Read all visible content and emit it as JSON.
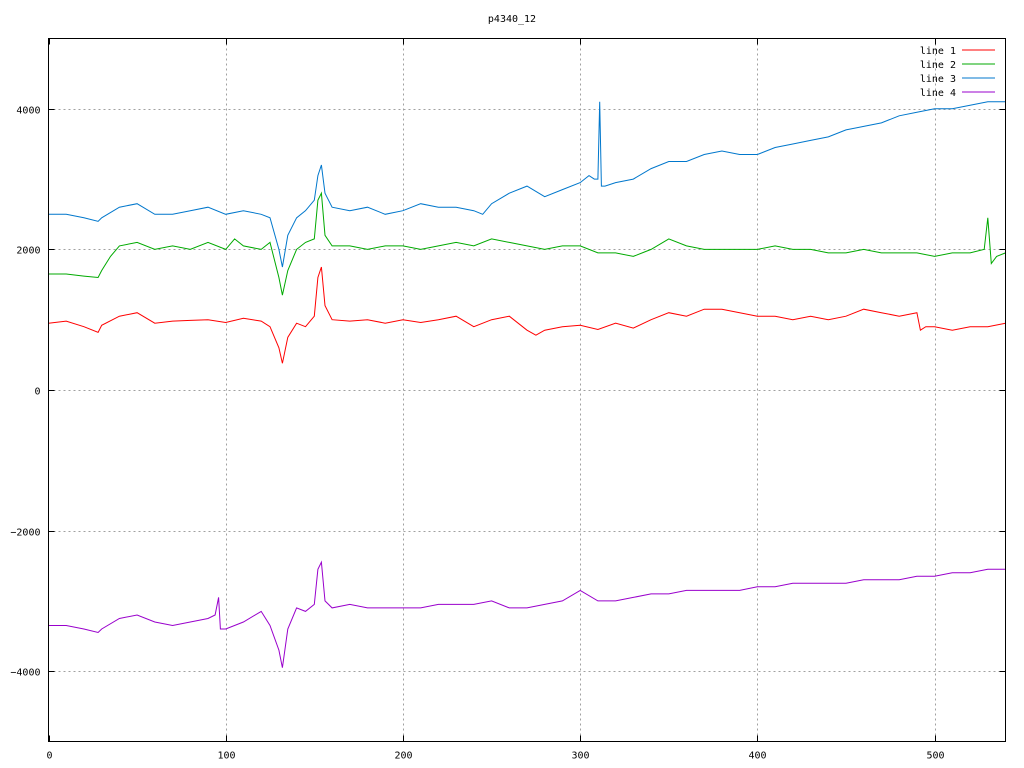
{
  "chart_data": {
    "type": "line",
    "title": "p4340_12",
    "xlabel": "",
    "ylabel": "",
    "xlim": [
      0,
      540
    ],
    "ylim": [
      -5000,
      5000
    ],
    "xticks": [
      0,
      100,
      200,
      300,
      400,
      500
    ],
    "yticks": [
      -4000,
      -2000,
      0,
      2000,
      4000
    ],
    "grid": true,
    "legend_position": "top-right",
    "series": [
      {
        "name": "line 1",
        "color": "#ff0000",
        "x": [
          0,
          10,
          20,
          28,
          30,
          40,
          50,
          60,
          70,
          80,
          90,
          100,
          110,
          120,
          125,
          130,
          132,
          135,
          140,
          145,
          150,
          152,
          154,
          156,
          160,
          170,
          180,
          190,
          200,
          210,
          220,
          230,
          240,
          250,
          260,
          270,
          275,
          280,
          290,
          300,
          310,
          320,
          330,
          340,
          350,
          360,
          370,
          380,
          390,
          400,
          410,
          420,
          430,
          440,
          450,
          460,
          470,
          480,
          490,
          492,
          495,
          500,
          510,
          520,
          530,
          540
        ],
        "y": [
          950,
          980,
          900,
          820,
          920,
          1050,
          1100,
          950,
          980,
          990,
          1000,
          960,
          1020,
          980,
          900,
          600,
          380,
          750,
          950,
          900,
          1050,
          1600,
          1750,
          1200,
          1000,
          980,
          1000,
          950,
          1000,
          960,
          1000,
          1050,
          900,
          1000,
          1050,
          850,
          780,
          850,
          900,
          920,
          860,
          950,
          880,
          1000,
          1100,
          1050,
          1150,
          1150,
          1100,
          1050,
          1050,
          1000,
          1050,
          1000,
          1050,
          1150,
          1100,
          1050,
          1100,
          850,
          900,
          900,
          850,
          900,
          900,
          950
        ]
      },
      {
        "name": "line 2",
        "color": "#00aa00",
        "x": [
          0,
          10,
          20,
          28,
          30,
          35,
          40,
          50,
          60,
          70,
          80,
          90,
          100,
          105,
          110,
          120,
          125,
          130,
          132,
          135,
          140,
          145,
          150,
          152,
          154,
          156,
          160,
          170,
          180,
          190,
          200,
          210,
          220,
          230,
          240,
          250,
          260,
          270,
          280,
          290,
          300,
          310,
          320,
          330,
          340,
          350,
          360,
          370,
          380,
          390,
          400,
          410,
          420,
          430,
          440,
          450,
          460,
          470,
          480,
          490,
          500,
          510,
          520,
          528,
          530,
          532,
          535,
          540
        ],
        "y": [
          1650,
          1650,
          1620,
          1600,
          1700,
          1900,
          2050,
          2100,
          2000,
          2050,
          2000,
          2100,
          2000,
          2150,
          2050,
          2000,
          2100,
          1600,
          1350,
          1700,
          2000,
          2100,
          2150,
          2700,
          2800,
          2200,
          2050,
          2050,
          2000,
          2050,
          2050,
          2000,
          2050,
          2100,
          2050,
          2150,
          2100,
          2050,
          2000,
          2050,
          2050,
          1950,
          1950,
          1900,
          2000,
          2150,
          2050,
          2000,
          2000,
          2000,
          2000,
          2050,
          2000,
          2000,
          1950,
          1950,
          2000,
          1950,
          1950,
          1950,
          1900,
          1950,
          1950,
          2000,
          2450,
          1800,
          1900,
          1950
        ]
      },
      {
        "name": "line 3",
        "color": "#0077cc",
        "x": [
          0,
          10,
          20,
          28,
          30,
          40,
          50,
          60,
          70,
          80,
          90,
          100,
          110,
          120,
          125,
          130,
          132,
          135,
          140,
          145,
          150,
          152,
          154,
          156,
          160,
          170,
          180,
          190,
          200,
          210,
          220,
          230,
          240,
          245,
          250,
          260,
          270,
          280,
          290,
          300,
          305,
          308,
          310,
          311,
          312,
          314,
          320,
          330,
          340,
          350,
          360,
          370,
          380,
          390,
          400,
          410,
          420,
          430,
          440,
          450,
          460,
          470,
          480,
          490,
          500,
          510,
          520,
          530,
          540
        ],
        "y": [
          2500,
          2500,
          2450,
          2400,
          2450,
          2600,
          2650,
          2500,
          2500,
          2550,
          2600,
          2500,
          2550,
          2500,
          2450,
          2000,
          1750,
          2200,
          2450,
          2550,
          2700,
          3050,
          3200,
          2800,
          2600,
          2550,
          2600,
          2500,
          2550,
          2650,
          2600,
          2600,
          2550,
          2500,
          2650,
          2800,
          2900,
          2750,
          2850,
          2950,
          3050,
          3000,
          3000,
          4100,
          2900,
          2900,
          2950,
          3000,
          3150,
          3250,
          3250,
          3350,
          3400,
          3350,
          3350,
          3450,
          3500,
          3550,
          3600,
          3700,
          3750,
          3800,
          3900,
          3950,
          4000,
          4000,
          4050,
          4100,
          4100
        ]
      },
      {
        "name": "line 4",
        "color": "#9900cc",
        "x": [
          0,
          10,
          20,
          28,
          30,
          40,
          50,
          60,
          70,
          80,
          90,
          94,
          96,
          97,
          100,
          110,
          120,
          125,
          130,
          132,
          135,
          140,
          145,
          150,
          152,
          154,
          156,
          160,
          170,
          180,
          190,
          200,
          210,
          220,
          230,
          240,
          250,
          260,
          270,
          280,
          290,
          300,
          310,
          320,
          330,
          340,
          350,
          360,
          370,
          380,
          390,
          400,
          410,
          420,
          430,
          440,
          450,
          460,
          470,
          480,
          490,
          500,
          510,
          520,
          530,
          540
        ],
        "y": [
          -3350,
          -3350,
          -3400,
          -3450,
          -3400,
          -3250,
          -3200,
          -3300,
          -3350,
          -3300,
          -3250,
          -3200,
          -2950,
          -3400,
          -3400,
          -3300,
          -3150,
          -3350,
          -3700,
          -3950,
          -3400,
          -3100,
          -3150,
          -3050,
          -2550,
          -2450,
          -3000,
          -3100,
          -3050,
          -3100,
          -3100,
          -3100,
          -3100,
          -3050,
          -3050,
          -3050,
          -3000,
          -3100,
          -3100,
          -3050,
          -3000,
          -2850,
          -3000,
          -3000,
          -2950,
          -2900,
          -2900,
          -2850,
          -2850,
          -2850,
          -2850,
          -2800,
          -2800,
          -2750,
          -2750,
          -2750,
          -2750,
          -2700,
          -2700,
          -2700,
          -2650,
          -2650,
          -2600,
          -2600,
          -2550,
          -2550
        ]
      }
    ]
  }
}
